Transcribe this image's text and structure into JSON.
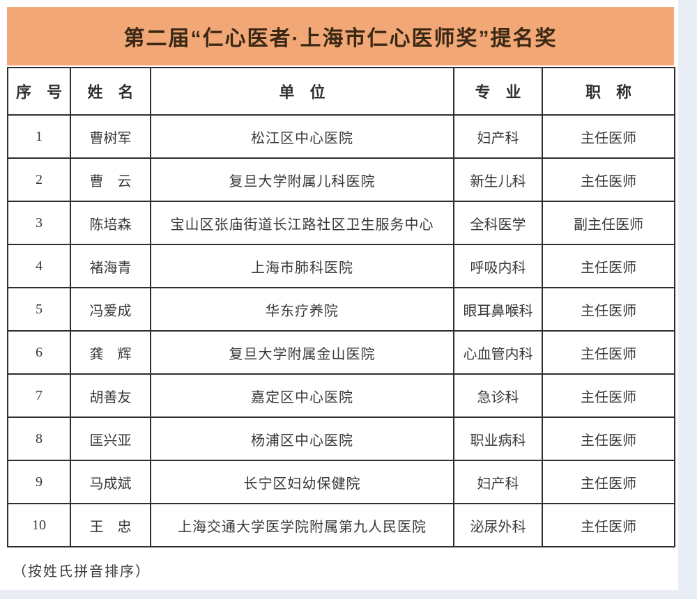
{
  "title": "第二届“仁心医者·上海市仁心医师奖”提名奖",
  "banner_color": "#f1a876",
  "title_color": "#3a2714",
  "table": {
    "columns": [
      "序　号",
      "姓　名",
      "单　位",
      "专　业",
      "职　称"
    ],
    "rows": [
      [
        "1",
        "曹树军",
        "松江区中心医院",
        "妇产科",
        "主任医师"
      ],
      [
        "2",
        "曹　云",
        "复旦大学附属儿科医院",
        "新生儿科",
        "主任医师"
      ],
      [
        "3",
        "陈培森",
        "宝山区张庙街道长江路社区卫生服务中心",
        "全科医学",
        "副主任医师"
      ],
      [
        "4",
        "褚海青",
        "上海市肺科医院",
        "呼吸内科",
        "主任医师"
      ],
      [
        "5",
        "冯爱成",
        "华东疗养院",
        "眼耳鼻喉科",
        "主任医师"
      ],
      [
        "6",
        "龚　辉",
        "复旦大学附属金山医院",
        "心血管内科",
        "主任医师"
      ],
      [
        "7",
        "胡善友",
        "嘉定区中心医院",
        "急诊科",
        "主任医师"
      ],
      [
        "8",
        "匡兴亚",
        "杨浦区中心医院",
        "职业病科",
        "主任医师"
      ],
      [
        "9",
        "马成斌",
        "长宁区妇幼保健院",
        "妇产科",
        "主任医师"
      ],
      [
        "10",
        "王　忠",
        "上海交通大学医学院附属第九人民医院",
        "泌尿外科",
        "主任医师"
      ]
    ]
  },
  "footnote": "（按姓氏拼音排序）"
}
